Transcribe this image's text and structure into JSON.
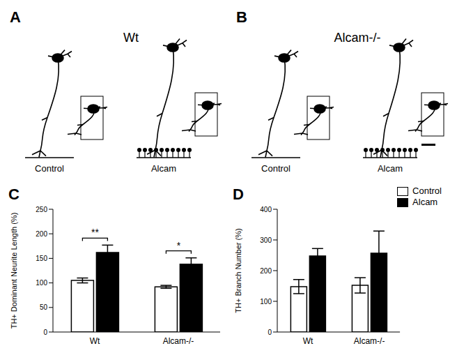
{
  "image_panels": [
    {
      "panel": "A",
      "title": "Wt",
      "conditions": [
        "Control",
        "Alcam"
      ]
    },
    {
      "panel": "B",
      "title": "Alcam-/-",
      "conditions": [
        "Control",
        "Alcam"
      ]
    }
  ],
  "chart_data": [
    {
      "panel": "C",
      "type": "bar",
      "y_label": "TH+ Dominant Neurite Length (%)",
      "categories": [
        "Wt",
        "Alcam-/-"
      ],
      "series": [
        {
          "name": "Control",
          "color": "#ffffff",
          "values": [
            105,
            92
          ],
          "error": [
            5,
            3
          ]
        },
        {
          "name": "Alcam",
          "color": "#000000",
          "values": [
            162,
            138
          ],
          "error": [
            15,
            13
          ]
        }
      ],
      "ylim": [
        0,
        250
      ],
      "yticks": [
        0,
        50,
        100,
        150,
        200,
        250
      ],
      "annotations": [
        {
          "category": "Wt",
          "label": "**"
        },
        {
          "category": "Alcam-/-",
          "label": "*"
        }
      ]
    },
    {
      "panel": "D",
      "type": "bar",
      "y_label": "TH+ Branch Number (%)",
      "categories": [
        "Wt",
        "Alcam-/-"
      ],
      "series": [
        {
          "name": "Control",
          "color": "#ffffff",
          "values": [
            148,
            152
          ],
          "error": [
            23,
            25
          ]
        },
        {
          "name": "Alcam",
          "color": "#000000",
          "values": [
            248,
            257
          ],
          "error": [
            24,
            72
          ]
        }
      ],
      "ylim": [
        0,
        400
      ],
      "yticks": [
        0,
        100,
        200,
        300,
        400
      ],
      "legend": "top-right"
    }
  ]
}
